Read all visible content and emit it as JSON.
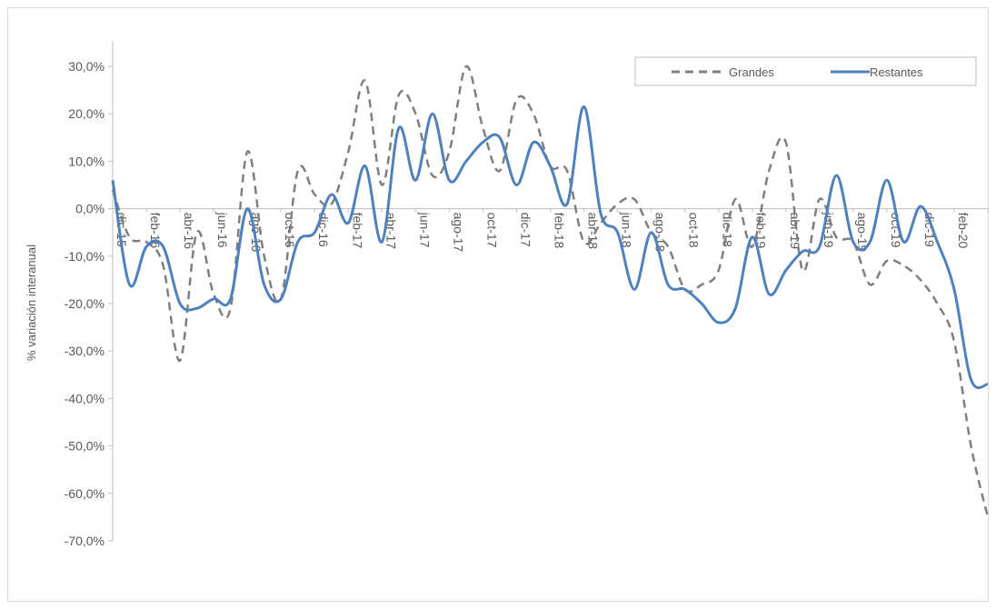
{
  "chart_data": {
    "type": "line",
    "ylabel": "% variación interanual",
    "ylim": [
      -70,
      30
    ],
    "ytick_step": 10,
    "ytick_labels": [
      "30,0%",
      "20,0%",
      "10,0%",
      "0,0%",
      "-10,0%",
      "-20,0%",
      "-30,0%",
      "-40,0%",
      "-50,0%",
      "-60,0%",
      "-70,0%"
    ],
    "x": [
      "dic-15",
      "ene-16",
      "feb-16",
      "mar-16",
      "abr-16",
      "may-16",
      "jun-16",
      "jul-16",
      "ago-16",
      "sep-16",
      "oct-16",
      "nov-16",
      "dic-16",
      "ene-17",
      "feb-17",
      "mar-17",
      "abr-17",
      "may-17",
      "jun-17",
      "jul-17",
      "ago-17",
      "sep-17",
      "oct-17",
      "nov-17",
      "dic-17",
      "ene-18",
      "feb-18",
      "mar-18",
      "abr-18",
      "may-18",
      "jun-18",
      "jul-18",
      "ago-18",
      "sep-18",
      "oct-18",
      "nov-18",
      "dic-18",
      "ene-19",
      "feb-19",
      "mar-19",
      "abr-19",
      "may-19",
      "jun-19",
      "jul-19",
      "ago-19",
      "sep-19",
      "oct-19",
      "nov-19",
      "dic-19",
      "ene-20",
      "feb-20",
      "mar-20",
      "abr-20"
    ],
    "x_tick_labels": [
      "dic-15",
      "feb-16",
      "abr-16",
      "jun-16",
      "ago-16",
      "oct-16",
      "dic-16",
      "feb-17",
      "abr-17",
      "jun-17",
      "ago-17",
      "oct-17",
      "dic-17",
      "feb-18",
      "abr-18",
      "jun-18",
      "ago-18",
      "oct-18",
      "dic-18",
      "feb-19",
      "abr-19",
      "jun-19",
      "ago-19",
      "oct-19",
      "dic-19",
      "feb-20",
      "abr-20"
    ],
    "legend_position": "top-right",
    "grid": false,
    "series": [
      {
        "name": "Grandes",
        "color": "#7f7f7f",
        "dash": "dashed",
        "values": [
          4.0,
          -6.0,
          -7.0,
          -12.0,
          -32.0,
          -5.0,
          -18.0,
          -21.0,
          12.0,
          -10.0,
          -19.0,
          8.0,
          3.0,
          1.0,
          12.0,
          27.0,
          5.0,
          24.0,
          20.0,
          7.0,
          12.0,
          30.0,
          17.0,
          8.0,
          23.0,
          20.0,
          9.0,
          8.0,
          -7.0,
          -3.0,
          1.0,
          2.0,
          -5.0,
          -8.0,
          -17.0,
          -16.0,
          -13.0,
          2.0,
          -8.0,
          8.0,
          14.0,
          -13.0,
          2.0,
          -6.0,
          -7.0,
          -16.0,
          -11.0,
          -12.0,
          -15.0,
          -20.0,
          -28.0,
          -50.0,
          -65.0
        ]
      },
      {
        "name": "Restantes",
        "color": "#4f81bd",
        "dash": "solid",
        "values": [
          6.0,
          -16.0,
          -8.0,
          -8.0,
          -20.0,
          -21.0,
          -19.0,
          -19.0,
          0.0,
          -16.0,
          -19.0,
          -7.0,
          -5.0,
          3.0,
          -3.0,
          9.0,
          -7.0,
          17.0,
          6.0,
          20.0,
          6.0,
          10.0,
          14.0,
          15.0,
          5.0,
          14.0,
          9.0,
          1.0,
          21.5,
          -1.0,
          -5.0,
          -17.0,
          -5.0,
          -16.0,
          -17.0,
          -20.0,
          -24.0,
          -21.0,
          -6.0,
          -18.0,
          -13.0,
          -9.0,
          -8.0,
          7.0,
          -7.0,
          -7.0,
          6.0,
          -7.0,
          0.5,
          -7.0,
          -17.0,
          -36.0,
          -37.0
        ]
      }
    ]
  }
}
